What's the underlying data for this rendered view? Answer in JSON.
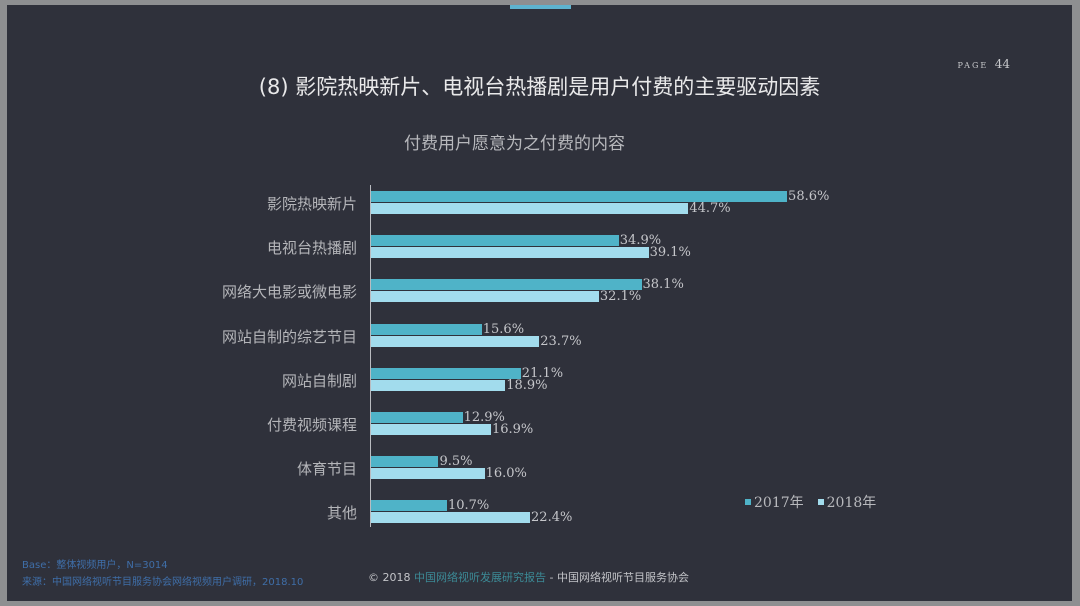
{
  "page": {
    "label": "PAGE",
    "number": "44"
  },
  "title": "(8) 影院热映新片、电视台热播剧是用户付费的主要驱动因素",
  "subtitle": "付费用户愿意为之付费的内容",
  "legend": {
    "s2017": "2017年",
    "s2018": "2018年"
  },
  "colors": {
    "s2017": "#4fb3c8",
    "s2018": "#a2dced",
    "background": "#2f313b"
  },
  "footer": {
    "base": "Base：整体视频用户，N=3014",
    "source": "来源：中国网络视听节目服务协会网络视频用户调研，2018.10",
    "copyright_prefix": "© 2018",
    "copyright_report": "中国网络视听发展研究报告",
    "copyright_org": " - 中国网络视听节目服务协会"
  },
  "chart_data": {
    "type": "bar",
    "orientation": "horizontal",
    "title": "付费用户愿意为之付费的内容",
    "categories": [
      "影院热映新片",
      "电视台热播剧",
      "网络大电影或微电影",
      "网站自制的综艺节目",
      "网站自制剧",
      "付费视频课程",
      "体育节目",
      "其他"
    ],
    "series": [
      {
        "name": "2017年",
        "values": [
          58.6,
          34.9,
          38.1,
          15.6,
          21.1,
          12.9,
          9.5,
          10.7
        ]
      },
      {
        "name": "2018年",
        "values": [
          44.7,
          39.1,
          32.1,
          23.7,
          18.9,
          16.9,
          16.0,
          22.4
        ]
      }
    ],
    "value_labels": {
      "2017年": [
        "58.6%",
        "34.9%",
        "38.1%",
        "15.6%",
        "21.1%",
        "12.9%",
        "9.5%",
        "10.7%"
      ],
      "2018年": [
        "44.7%",
        "39.1%",
        "32.1%",
        "23.7%",
        "18.9%",
        "16.9%",
        "16.0%",
        "22.4%"
      ]
    },
    "xlabel": "",
    "ylabel": "",
    "unit": "%",
    "grid": false,
    "legend_position": "bottom-right"
  }
}
